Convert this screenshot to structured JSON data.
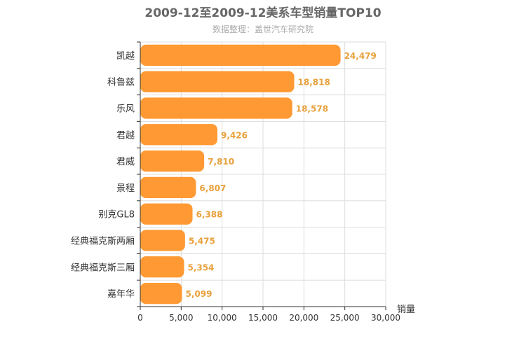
{
  "chart_data": {
    "type": "bar",
    "orientation": "horizontal",
    "title": "2009-12至2009-12美系车型销量TOP10",
    "subtitle": "数据整理：盖世汽车研究院",
    "xlabel": "销量",
    "ylabel": "",
    "categories": [
      "凯越",
      "科鲁兹",
      "乐风",
      "君越",
      "君威",
      "景程",
      "别克GL8",
      "经典福克斯两厢",
      "经典福克斯三厢",
      "嘉年华"
    ],
    "values": [
      24479,
      18818,
      18578,
      9426,
      7810,
      6807,
      6388,
      5475,
      5354,
      5099
    ],
    "value_labels": [
      "24,479",
      "18,818",
      "18,578",
      "9,426",
      "7,810",
      "6,807",
      "6,388",
      "5,475",
      "5,354",
      "5,099"
    ],
    "xlim": [
      0,
      30000
    ],
    "xticks": [
      0,
      5000,
      10000,
      15000,
      20000,
      25000,
      30000
    ],
    "xtick_labels": [
      "0",
      "5,000",
      "10,000",
      "15,000",
      "20,000",
      "25,000",
      "30,000"
    ],
    "grid": true,
    "legend": "none",
    "bar_color": "#ff9933",
    "label_color": "#e8a13d"
  }
}
